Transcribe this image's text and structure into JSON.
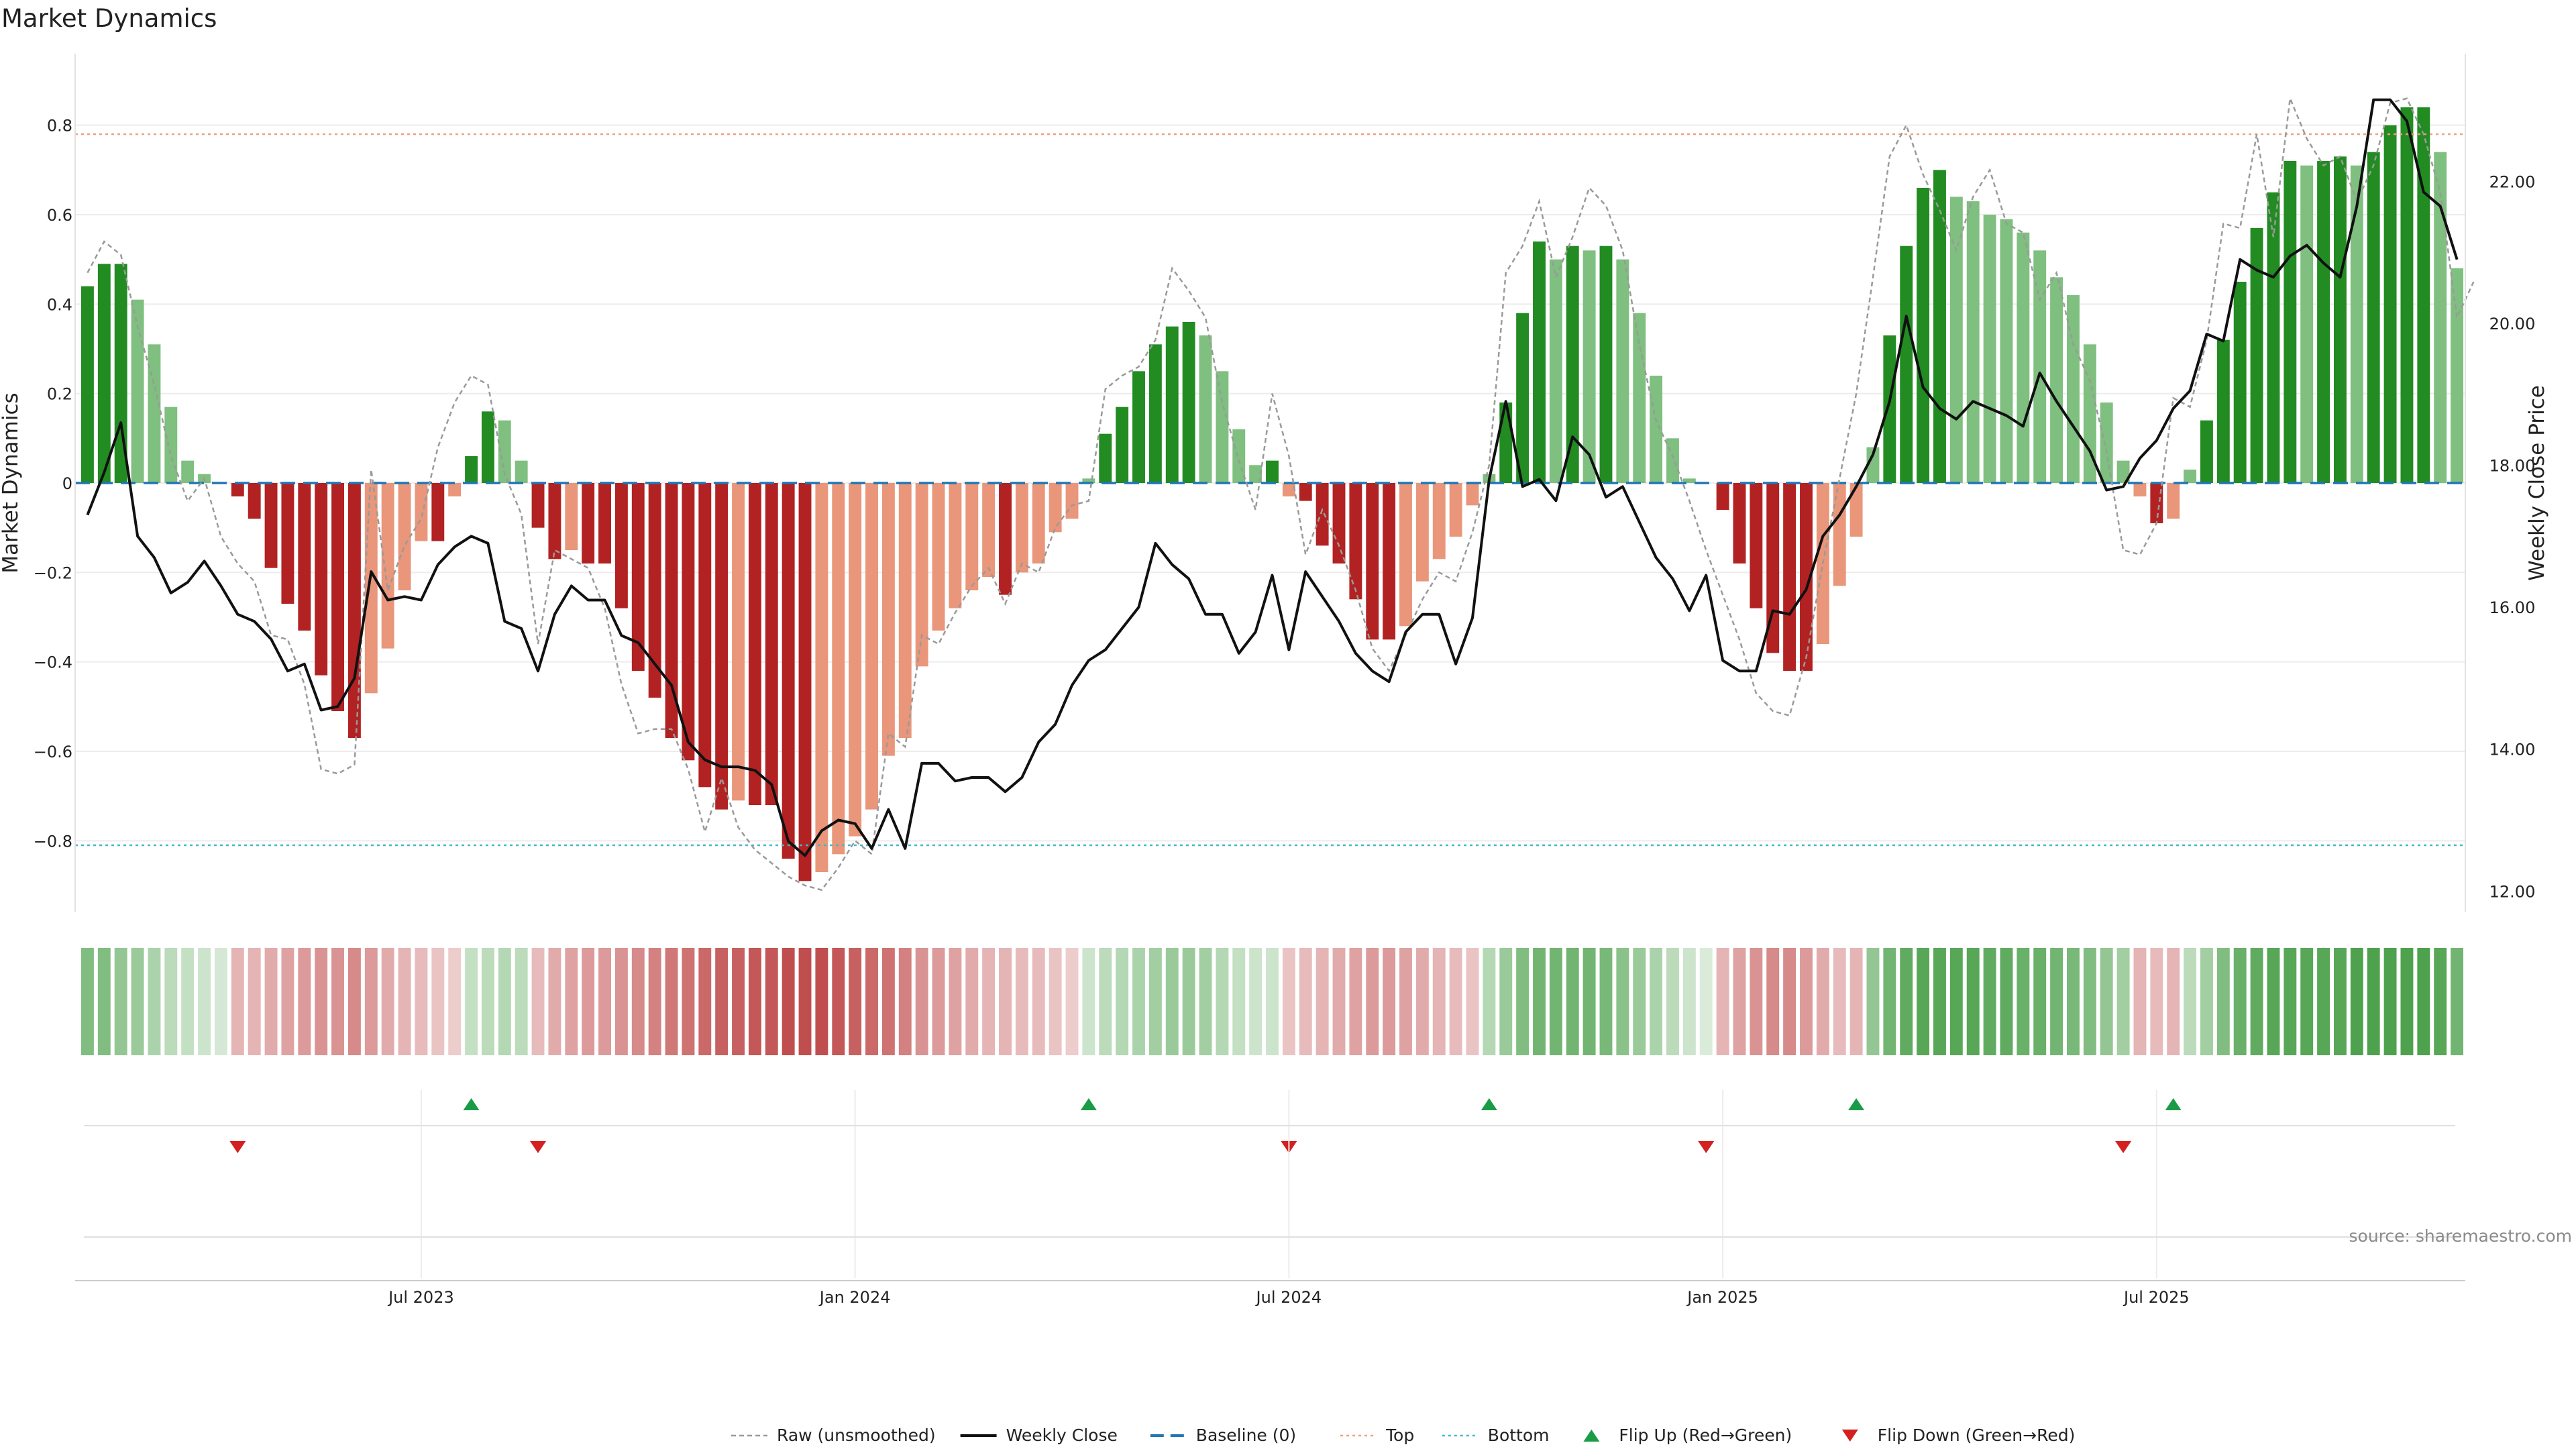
{
  "title": "Market Dynamics",
  "source": "source: sharemaestro.com",
  "colors": {
    "strong_up": "#228b22",
    "weak_up": "#7fbf7f",
    "strong_down": "#b22222",
    "weak_down": "#e9967a",
    "flip_up": "#1a9c46",
    "flip_down": "#d42020",
    "top_line": "#f0a080",
    "bottom_line": "#40b8c8",
    "baseline": "#1f77b4"
  },
  "chart_data": {
    "type": "bar",
    "title": "Market Dynamics",
    "ylabel": "Market Dynamics",
    "y2label": "Weekly Close Price",
    "ylim": [
      -0.96,
      0.96
    ],
    "y_ticks": [
      0.8,
      0.6,
      0.4,
      0.2,
      0,
      -0.2,
      -0.4,
      -0.6,
      -0.8
    ],
    "y_tick_labels": [
      "0.8",
      "0.6",
      "0.4",
      "0.2",
      "0",
      "−0.2",
      "−0.4",
      "−0.6",
      "−0.8"
    ],
    "y2lim": [
      11.7,
      23.8
    ],
    "y2_ticks": [
      22,
      20,
      18,
      16,
      14,
      12
    ],
    "y2_tick_labels": [
      "22.00",
      "20.00",
      "18.00",
      "16.00",
      "14.00",
      "12.00"
    ],
    "x_tick_labels": [
      "Jul 2023",
      "Jan 2024",
      "Jul 2024",
      "Jan 2025",
      "Jul 2025"
    ],
    "x_tick_index": [
      20,
      46,
      72,
      98,
      124
    ],
    "top": 0.78,
    "bottom": -0.81,
    "baseline": 0,
    "values": [
      0.44,
      0.49,
      0.49,
      0.41,
      0.31,
      0.17,
      0.05,
      0.02,
      0,
      -0.03,
      -0.08,
      -0.19,
      -0.27,
      -0.33,
      -0.43,
      -0.51,
      -0.57,
      -0.47,
      -0.37,
      -0.24,
      -0.13,
      -0.13,
      -0.03,
      0.06,
      0.16,
      0.14,
      0.05,
      -0.1,
      -0.17,
      -0.15,
      -0.18,
      -0.18,
      -0.28,
      -0.42,
      -0.48,
      -0.57,
      -0.62,
      -0.68,
      -0.73,
      -0.71,
      -0.72,
      -0.72,
      -0.84,
      -0.89,
      -0.87,
      -0.83,
      -0.79,
      -0.73,
      -0.61,
      -0.57,
      -0.41,
      -0.33,
      -0.28,
      -0.24,
      -0.21,
      -0.25,
      -0.2,
      -0.18,
      -0.11,
      -0.08,
      0.01,
      0.11,
      0.17,
      0.25,
      0.31,
      0.35,
      0.36,
      0.33,
      0.25,
      0.12,
      0.04,
      0.05,
      -0.03,
      -0.04,
      -0.14,
      -0.18,
      -0.26,
      -0.35,
      -0.35,
      -0.32,
      -0.22,
      -0.17,
      -0.12,
      -0.05,
      0.02,
      0.18,
      0.38,
      0.54,
      0.5,
      0.53,
      0.52,
      0.53,
      0.5,
      0.38,
      0.24,
      0.1,
      0.01,
      0,
      -0.06,
      -0.18,
      -0.28,
      -0.38,
      -0.42,
      -0.42,
      -0.36,
      -0.23,
      -0.12,
      0.08,
      0.33,
      0.53,
      0.66,
      0.7,
      0.64,
      0.63,
      0.6,
      0.59,
      0.56,
      0.52,
      0.46,
      0.42,
      0.31,
      0.18,
      0.05,
      -0.03,
      -0.09,
      -0.08,
      0.03,
      0.14,
      0.32,
      0.45,
      0.57,
      0.65,
      0.72,
      0.71,
      0.72,
      0.73,
      0.71,
      0.74,
      0.8,
      0.84,
      0.84,
      0.74,
      0.48
    ],
    "close": [
      17.3,
      17.9,
      18.6,
      17.0,
      16.7,
      16.2,
      16.35,
      16.65,
      16.3,
      15.9,
      15.8,
      15.55,
      15.1,
      15.2,
      14.55,
      14.6,
      15.0,
      16.5,
      16.1,
      16.15,
      16.1,
      16.6,
      16.85,
      17.0,
      16.9,
      15.8,
      15.7,
      15.1,
      15.9,
      16.3,
      16.1,
      16.1,
      15.6,
      15.5,
      15.2,
      14.9,
      14.1,
      13.85,
      13.75,
      13.75,
      13.7,
      13.5,
      12.7,
      12.5,
      12.85,
      13.0,
      12.95,
      12.6,
      13.15,
      12.6,
      13.8,
      13.8,
      13.55,
      13.6,
      13.6,
      13.4,
      13.6,
      14.1,
      14.35,
      14.9,
      15.25,
      15.4,
      15.7,
      16.0,
      16.9,
      16.6,
      16.4,
      15.9,
      15.9,
      15.35,
      15.65,
      16.45,
      15.4,
      16.5,
      16.15,
      15.8,
      15.35,
      15.1,
      14.95,
      15.65,
      15.9,
      15.9,
      15.2,
      15.85,
      17.8,
      18.9,
      17.7,
      17.8,
      17.5,
      18.4,
      18.15,
      17.55,
      17.7,
      17.2,
      16.7,
      16.4,
      15.95,
      16.45,
      15.25,
      15.1,
      15.1,
      15.95,
      15.9,
      16.25,
      17.0,
      17.3,
      17.7,
      18.15,
      18.9,
      20.1,
      19.1,
      18.8,
      18.65,
      18.9,
      18.8,
      18.7,
      18.55,
      19.3,
      18.9,
      18.55,
      18.2,
      17.65,
      17.7,
      18.1,
      18.35,
      18.8,
      19.05,
      19.85,
      19.75,
      20.9,
      20.75,
      20.65,
      20.95,
      21.1,
      20.85,
      20.65,
      21.65,
      23.15,
      23.15,
      22.85,
      21.85,
      21.65,
      20.9
    ],
    "raw": [
      0.47,
      0.54,
      0.51,
      0.35,
      0.22,
      0.06,
      -0.04,
      0.01,
      -0.12,
      -0.18,
      -0.22,
      -0.34,
      -0.35,
      -0.45,
      -0.64,
      -0.65,
      -0.63,
      0.03,
      -0.24,
      -0.14,
      -0.08,
      0.08,
      0.18,
      0.24,
      0.22,
      0.02,
      -0.07,
      -0.36,
      -0.15,
      -0.17,
      -0.19,
      -0.28,
      -0.45,
      -0.56,
      -0.55,
      -0.55,
      -0.64,
      -0.78,
      -0.66,
      -0.77,
      -0.82,
      -0.85,
      -0.88,
      -0.9,
      -0.91,
      -0.86,
      -0.8,
      -0.83,
      -0.56,
      -0.59,
      -0.34,
      -0.36,
      -0.29,
      -0.23,
      -0.19,
      -0.27,
      -0.18,
      -0.2,
      -0.1,
      -0.05,
      -0.04,
      0.21,
      0.24,
      0.26,
      0.32,
      0.48,
      0.43,
      0.37,
      0.18,
      0.05,
      -0.06,
      0.2,
      0.06,
      -0.16,
      -0.06,
      -0.14,
      -0.24,
      -0.37,
      -0.42,
      -0.34,
      -0.26,
      -0.2,
      -0.22,
      -0.11,
      0.04,
      0.47,
      0.53,
      0.63,
      0.46,
      0.55,
      0.66,
      0.62,
      0.52,
      0.31,
      0.14,
      0.06,
      -0.04,
      -0.15,
      -0.25,
      -0.35,
      -0.47,
      -0.51,
      -0.52,
      -0.39,
      -0.18,
      0.01,
      0.2,
      0.46,
      0.73,
      0.8,
      0.69,
      0.61,
      0.52,
      0.64,
      0.7,
      0.58,
      0.56,
      0.41,
      0.47,
      0.31,
      0.23,
      0.07,
      -0.15,
      -0.16,
      -0.09,
      0.19,
      0.17,
      0.32,
      0.58,
      0.57,
      0.78,
      0.55,
      0.86,
      0.77,
      0.71,
      0.73,
      0.63,
      0.71,
      0.85,
      0.86,
      0.78,
      0.65,
      0.37,
      0.45
    ],
    "heat_intensity": [
      0.6,
      0.6,
      0.5,
      0.45,
      0.35,
      0.25,
      0.2,
      0.15,
      0.25,
      0.3,
      0.3,
      0.35,
      0.4,
      0.45,
      0.5,
      0.5,
      0.55,
      0.45,
      0.35,
      0.3,
      0.25,
      0.2,
      0.15,
      0.2,
      0.25,
      0.3,
      0.25,
      0.25,
      0.35,
      0.4,
      0.45,
      0.45,
      0.5,
      0.55,
      0.6,
      0.65,
      0.7,
      0.75,
      0.8,
      0.8,
      0.85,
      0.85,
      0.9,
      0.9,
      0.9,
      0.85,
      0.8,
      0.75,
      0.7,
      0.6,
      0.5,
      0.45,
      0.4,
      0.35,
      0.3,
      0.3,
      0.25,
      0.25,
      0.2,
      0.15,
      0.15,
      0.25,
      0.3,
      0.35,
      0.4,
      0.45,
      0.45,
      0.4,
      0.3,
      0.2,
      0.15,
      0.15,
      0.2,
      0.25,
      0.3,
      0.35,
      0.4,
      0.45,
      0.45,
      0.4,
      0.35,
      0.3,
      0.25,
      0.2,
      0.3,
      0.45,
      0.6,
      0.7,
      0.7,
      0.7,
      0.7,
      0.65,
      0.55,
      0.45,
      0.35,
      0.25,
      0.15,
      0.2,
      0.3,
      0.4,
      0.5,
      0.55,
      0.55,
      0.45,
      0.35,
      0.25,
      0.3,
      0.5,
      0.7,
      0.8,
      0.85,
      0.85,
      0.85,
      0.85,
      0.8,
      0.8,
      0.75,
      0.75,
      0.7,
      0.65,
      0.6,
      0.5,
      0.4,
      0.3,
      0.25,
      0.3,
      0.25,
      0.4,
      0.6,
      0.75,
      0.8,
      0.85,
      0.85,
      0.85,
      0.85,
      0.85,
      0.9,
      0.9,
      0.9,
      0.9,
      0.9,
      0.85,
      0.7
    ],
    "flip_up_index": [
      23,
      60,
      84,
      106,
      125
    ],
    "flip_down_index": [
      9,
      27,
      72,
      97,
      122
    ]
  },
  "legend": [
    {
      "label": "Raw (unsmoothed)",
      "kind": "raw"
    },
    {
      "label": "Weekly Close",
      "kind": "close"
    },
    {
      "label": "Baseline (0)",
      "kind": "baseline"
    },
    {
      "label": "Top",
      "kind": "top"
    },
    {
      "label": "Bottom",
      "kind": "bottom"
    },
    {
      "label": "Flip Up (Red→Green)",
      "kind": "flipup"
    },
    {
      "label": "Flip Down (Green→Red)",
      "kind": "flipdown"
    }
  ]
}
